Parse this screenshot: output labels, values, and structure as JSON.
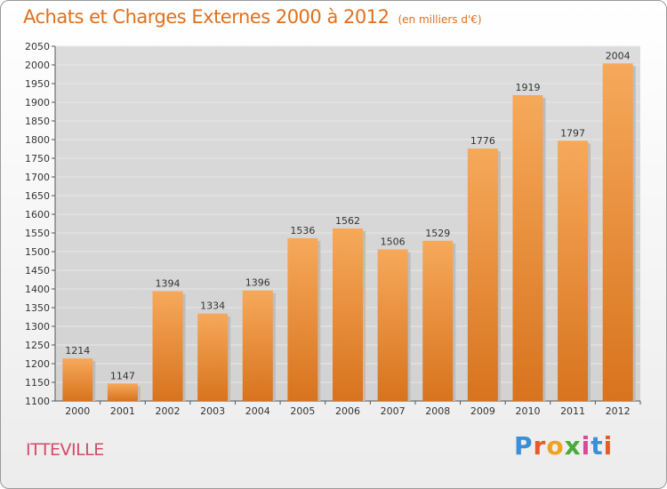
{
  "header": {
    "title": "Achats et Charges Externes 2000 à 2012",
    "subtitle": "(en milliers d'€)"
  },
  "commune": "ITTEVILLE",
  "logo": {
    "letters": [
      "P",
      "r",
      "o",
      "x",
      "i",
      "t",
      "i"
    ],
    "colors": [
      "#3a8fd6",
      "#e85a2c",
      "#f0a21e",
      "#4aaa3c",
      "#d64a9a",
      "#3a8fd6",
      "#e85a2c"
    ]
  },
  "chart_data": {
    "type": "bar",
    "title": "Achats et Charges Externes 2000 à 2012",
    "subtitle": "(en milliers d'€)",
    "xlabel": "",
    "ylabel": "",
    "categories": [
      "2000",
      "2001",
      "2002",
      "2003",
      "2004",
      "2005",
      "2006",
      "2007",
      "2008",
      "2009",
      "2010",
      "2011",
      "2012"
    ],
    "values": [
      1214,
      1147,
      1394,
      1334,
      1396,
      1536,
      1562,
      1506,
      1529,
      1776,
      1919,
      1797,
      2004
    ],
    "data_labels": [
      "1214",
      "1147",
      "1394",
      "1334",
      "1396",
      "1536",
      "1562",
      "1506",
      "1529",
      "1776",
      "1919",
      "1797",
      "2004"
    ],
    "ylim": [
      1100,
      2050
    ],
    "ytick_step": 50,
    "yticks": [
      "1100",
      "1150",
      "1200",
      "1250",
      "1300",
      "1350",
      "1400",
      "1450",
      "1500",
      "1550",
      "1600",
      "1650",
      "1700",
      "1750",
      "1800",
      "1850",
      "1900",
      "1950",
      "2000",
      "2050"
    ],
    "grid": true,
    "legend": "none",
    "bar_color_top": "#f6a95a",
    "bar_color_bottom": "#d8731e",
    "plot_background": "#d9d9d9",
    "grid_color": "#e8e8e8"
  }
}
